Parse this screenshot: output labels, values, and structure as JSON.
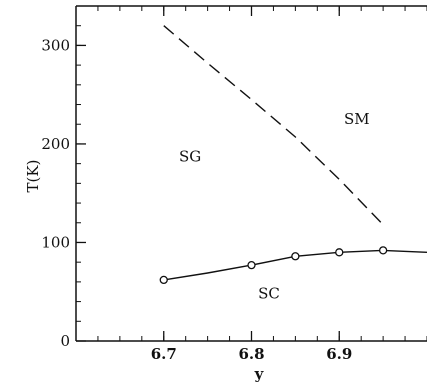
{
  "chart_data": {
    "type": "line",
    "xlabel": "y",
    "ylabel": "T(K)",
    "xlim": [
      6.6,
      7.0
    ],
    "ylim": [
      0,
      340
    ],
    "x_ticks": [
      6.7,
      6.8,
      6.9
    ],
    "x_tick_labels": [
      "6.7",
      "6.8",
      "6.9"
    ],
    "y_ticks": [
      0,
      100,
      200,
      300
    ],
    "y_tick_labels": [
      "0",
      "100",
      "200",
      "300"
    ],
    "grid": false,
    "series": [
      {
        "style": "dashed",
        "x": [
          6.7,
          6.75,
          6.8,
          6.85,
          6.9,
          6.95
        ],
        "y": [
          320,
          282,
          245,
          207,
          164,
          118
        ]
      },
      {
        "style": "solid-with-open-circles",
        "x": [
          6.7,
          6.75,
          6.8,
          6.85,
          6.9,
          6.95,
          7.0
        ],
        "y": [
          62,
          69,
          77,
          86,
          90,
          92,
          90
        ],
        "markers": [
          {
            "x": 6.7,
            "y": 62
          },
          {
            "x": 6.8,
            "y": 77
          },
          {
            "x": 6.85,
            "y": 86
          },
          {
            "x": 6.9,
            "y": 90
          },
          {
            "x": 6.95,
            "y": 92
          }
        ]
      }
    ],
    "annotations": [
      {
        "text": "SM",
        "x": 6.92,
        "y": 220
      },
      {
        "text": "SG",
        "x": 6.73,
        "y": 182
      },
      {
        "text": "SC",
        "x": 6.82,
        "y": 43
      }
    ]
  }
}
